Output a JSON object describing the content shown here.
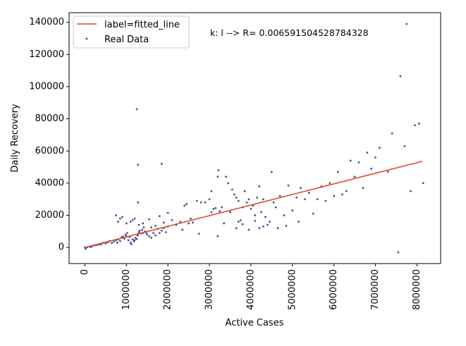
{
  "chart_data": {
    "type": "scatter",
    "xlabel": "Active Cases",
    "ylabel": "Daily Recovery",
    "annotation": "k: l --> R= 0.006591504528784328",
    "xlim": [
      -380000,
      8570000
    ],
    "ylim": [
      -10000,
      146000
    ],
    "x_ticks": [
      0,
      1000000,
      2000000,
      3000000,
      4000000,
      5000000,
      6000000,
      7000000,
      8000000
    ],
    "y_ticks": [
      0,
      20000,
      40000,
      60000,
      80000,
      100000,
      120000,
      140000
    ],
    "grid": false,
    "legend_position": "top-left",
    "colors": {
      "fitted_line": "#e8472f",
      "real_data": "#40508f",
      "axes": "#000000"
    },
    "series": [
      {
        "name": "label=fitted_line",
        "kind": "line",
        "x": [
          0,
          8130000
        ],
        "y": [
          0,
          53600
        ]
      },
      {
        "name": "Real Data",
        "kind": "scatter",
        "points": [
          [
            0,
            0
          ],
          [
            20000,
            -800
          ],
          [
            60000,
            200
          ],
          [
            120000,
            600
          ],
          [
            150000,
            300
          ],
          [
            200000,
            1000
          ],
          [
            250000,
            1400
          ],
          [
            300000,
            1600
          ],
          [
            350000,
            1900
          ],
          [
            400000,
            2000
          ],
          [
            450000,
            3000
          ],
          [
            500000,
            2600
          ],
          [
            550000,
            3200
          ],
          [
            600000,
            4000
          ],
          [
            650000,
            2800
          ],
          [
            700000,
            3600
          ],
          [
            750000,
            4500
          ],
          [
            780000,
            3000
          ],
          [
            800000,
            5000
          ],
          [
            850000,
            4000
          ],
          [
            880000,
            6200
          ],
          [
            920000,
            6800
          ],
          [
            950000,
            5500
          ],
          [
            980000,
            8000
          ],
          [
            1000000,
            7000
          ],
          [
            1020000,
            9000
          ],
          [
            1050000,
            4500
          ],
          [
            1080000,
            6500
          ],
          [
            1100000,
            3000
          ],
          [
            1120000,
            2000
          ],
          [
            1150000,
            5000
          ],
          [
            1180000,
            3800
          ],
          [
            1200000,
            4500
          ],
          [
            1220000,
            6000
          ],
          [
            1250000,
            5200
          ],
          [
            1270000,
            7500
          ],
          [
            1280000,
            8200
          ],
          [
            1300000,
            9500
          ],
          [
            1320000,
            10500
          ],
          [
            1350000,
            8800
          ],
          [
            1380000,
            11000
          ],
          [
            1400000,
            9000
          ],
          [
            1420000,
            12500
          ],
          [
            1450000,
            10000
          ],
          [
            1480000,
            9200
          ],
          [
            1500000,
            8000
          ],
          [
            1550000,
            7000
          ],
          [
            1600000,
            6000
          ],
          [
            1650000,
            9000
          ],
          [
            1700000,
            7500
          ],
          [
            1750000,
            11500
          ],
          [
            1800000,
            9000
          ],
          [
            1850000,
            10500
          ],
          [
            1900000,
            12000
          ],
          [
            1950000,
            9500
          ],
          [
            2000000,
            13000
          ],
          [
            750000,
            20000
          ],
          [
            800000,
            16000
          ],
          [
            850000,
            18000
          ],
          [
            900000,
            19000
          ],
          [
            1000000,
            15000
          ],
          [
            1100000,
            16000
          ],
          [
            1150000,
            17000
          ],
          [
            1200000,
            18000
          ],
          [
            1280000,
            28000
          ],
          [
            1300000,
            14000
          ],
          [
            1400000,
            15000
          ],
          [
            1550000,
            17500
          ],
          [
            1600000,
            12500
          ],
          [
            1700000,
            13500
          ],
          [
            1800000,
            19500
          ],
          [
            1900000,
            15500
          ],
          [
            2000000,
            21500
          ],
          [
            2100000,
            17000
          ],
          [
            2200000,
            14000
          ],
          [
            2300000,
            16000
          ],
          [
            2400000,
            26000
          ],
          [
            2450000,
            27000
          ],
          [
            2500000,
            15000
          ],
          [
            2600000,
            15500
          ],
          [
            2700000,
            29000
          ],
          [
            2800000,
            28000
          ],
          [
            2900000,
            28000
          ],
          [
            3000000,
            30000
          ],
          [
            3050000,
            35000
          ],
          [
            3100000,
            24000
          ],
          [
            3150000,
            24500
          ],
          [
            3200000,
            44000
          ],
          [
            3220000,
            48000
          ],
          [
            3300000,
            25000
          ],
          [
            3350000,
            15000
          ],
          [
            3400000,
            44000
          ],
          [
            3450000,
            40000
          ],
          [
            3500000,
            22000
          ],
          [
            3550000,
            36000
          ],
          [
            3600000,
            33000
          ],
          [
            3650000,
            31000
          ],
          [
            3700000,
            29000
          ],
          [
            3750000,
            17000
          ],
          [
            3800000,
            25000
          ],
          [
            3850000,
            35000
          ],
          [
            3900000,
            28000
          ],
          [
            3950000,
            30000
          ],
          [
            4000000,
            24000
          ],
          [
            4050000,
            26000
          ],
          [
            4100000,
            20000
          ],
          [
            4150000,
            31000
          ],
          [
            4200000,
            38000
          ],
          [
            4250000,
            22000
          ],
          [
            4300000,
            30000
          ],
          [
            4350000,
            19000
          ],
          [
            4400000,
            14000
          ],
          [
            4500000,
            47000
          ],
          [
            4550000,
            28000
          ],
          [
            4600000,
            25000
          ],
          [
            4700000,
            32000
          ],
          [
            4800000,
            20000
          ],
          [
            4900000,
            38500
          ],
          [
            5000000,
            23000
          ],
          [
            5100000,
            31000
          ],
          [
            5200000,
            37000
          ],
          [
            5300000,
            30000
          ],
          [
            5400000,
            34000
          ],
          [
            5500000,
            21000
          ],
          [
            5600000,
            30000
          ],
          [
            5700000,
            38000
          ],
          [
            5800000,
            29000
          ],
          [
            5900000,
            40000
          ],
          [
            6000000,
            32000
          ],
          [
            6100000,
            47000
          ],
          [
            6200000,
            33000
          ],
          [
            6300000,
            35000
          ],
          [
            6400000,
            54000
          ],
          [
            6500000,
            44000
          ],
          [
            6600000,
            53000
          ],
          [
            6700000,
            37000
          ],
          [
            6800000,
            59000
          ],
          [
            6900000,
            49000
          ],
          [
            7000000,
            56000
          ],
          [
            7100000,
            62000
          ],
          [
            7300000,
            47000
          ],
          [
            7400000,
            71000
          ],
          [
            7550000,
            -3000
          ],
          [
            7600000,
            106500
          ],
          [
            7700000,
            63000
          ],
          [
            7750000,
            139000
          ],
          [
            7850000,
            35000
          ],
          [
            7950000,
            76000
          ],
          [
            8050000,
            77000
          ],
          [
            8150000,
            40000
          ],
          [
            1250000,
            86000
          ],
          [
            1280000,
            51500
          ],
          [
            1850000,
            52000
          ],
          [
            2750000,
            8500
          ],
          [
            3200000,
            7000
          ],
          [
            3650000,
            12000
          ],
          [
            3700000,
            16000
          ],
          [
            3800000,
            14500
          ],
          [
            3950000,
            11000
          ],
          [
            4100000,
            16500
          ],
          [
            4200000,
            12000
          ],
          [
            4300000,
            13000
          ],
          [
            4450000,
            16000
          ],
          [
            4650000,
            12000
          ],
          [
            4850000,
            13500
          ],
          [
            5150000,
            16000
          ],
          [
            2350000,
            11000
          ],
          [
            2550000,
            18000
          ],
          [
            3050000,
            22000
          ],
          [
            3250000,
            22500
          ]
        ]
      }
    ]
  }
}
